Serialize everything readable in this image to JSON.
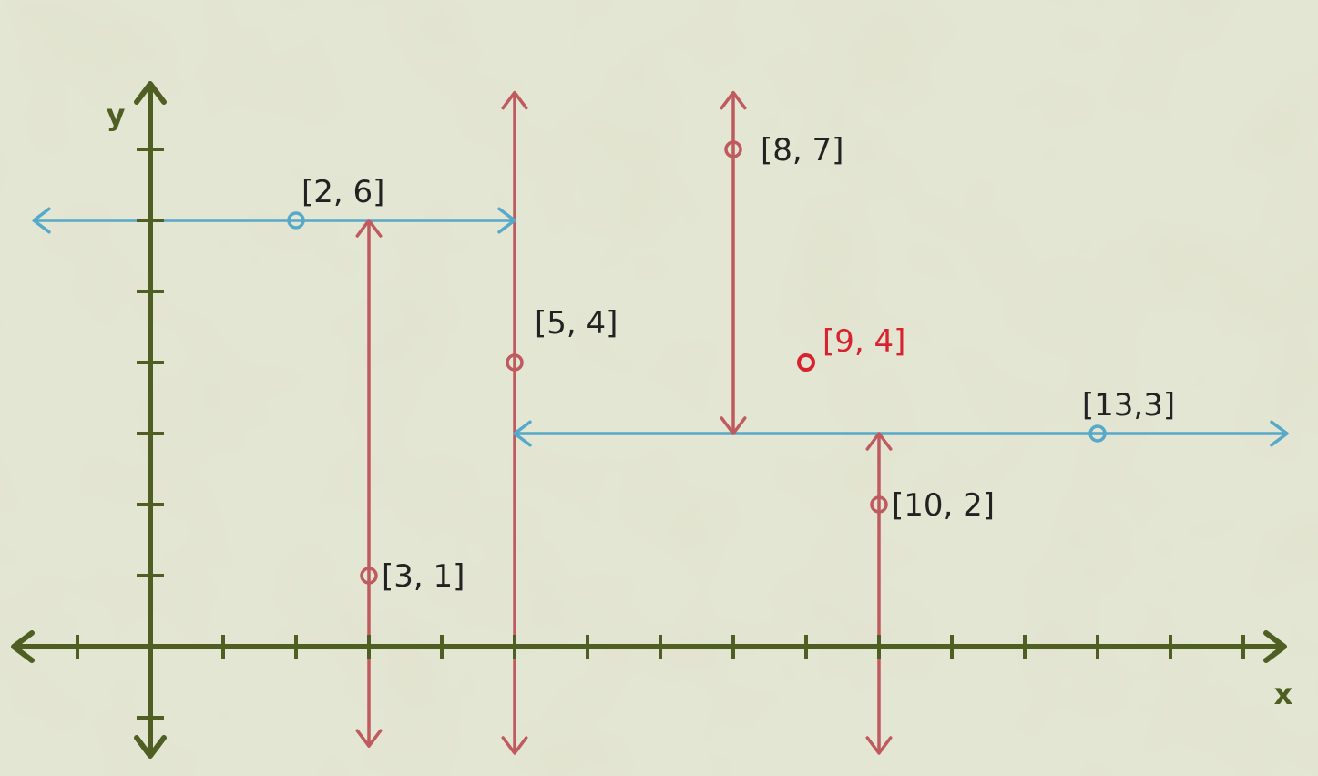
{
  "axes": {
    "x_label": "x",
    "y_label": "y",
    "x_range": [
      -2,
      15
    ],
    "y_range": [
      -1,
      7
    ],
    "color": "#4f5f24"
  },
  "colors": {
    "background": "#d9dcc4",
    "vertical_line": "#bf5a5f",
    "horizontal_line": "#56a9c8",
    "query_point": "#d8232f",
    "label_text": "#222222"
  },
  "points": [
    {
      "x": 2,
      "y": 6,
      "label": "[2, 6]",
      "split": "horizontal"
    },
    {
      "x": 3,
      "y": 1,
      "label": "[3, 1]",
      "split": "vertical"
    },
    {
      "x": 5,
      "y": 4,
      "label": "[5, 4]",
      "split": "vertical"
    },
    {
      "x": 8,
      "y": 7,
      "label": "[8, 7]",
      "split": "vertical"
    },
    {
      "x": 10,
      "y": 2,
      "label": "[10, 2]",
      "split": "vertical"
    },
    {
      "x": 13,
      "y": 3,
      "label": "[13,3]",
      "split": "horizontal"
    }
  ],
  "query_point": {
    "x": 9,
    "y": 4,
    "label": "[9, 4]"
  },
  "splitting_lines": [
    {
      "orientation": "vertical",
      "at": 5,
      "from": -1.5,
      "to": 7.8,
      "arrow_start": true,
      "arrow_end": true
    },
    {
      "orientation": "horizontal",
      "at": 6,
      "from": -1.6,
      "to": 5,
      "arrow_start": true,
      "arrow_end": true
    },
    {
      "orientation": "vertical",
      "at": 3,
      "from": -1.4,
      "to": 6,
      "arrow_start": true,
      "arrow_end": true
    },
    {
      "orientation": "horizontal",
      "at": 3,
      "from": 5,
      "to": 15.6,
      "arrow_start": true,
      "arrow_end": true
    },
    {
      "orientation": "vertical",
      "at": 8,
      "from": 3,
      "to": 7.8,
      "arrow_start": true,
      "arrow_end": true
    },
    {
      "orientation": "vertical",
      "at": 10,
      "from": -1.5,
      "to": 3,
      "arrow_start": true,
      "arrow_end": true
    }
  ]
}
